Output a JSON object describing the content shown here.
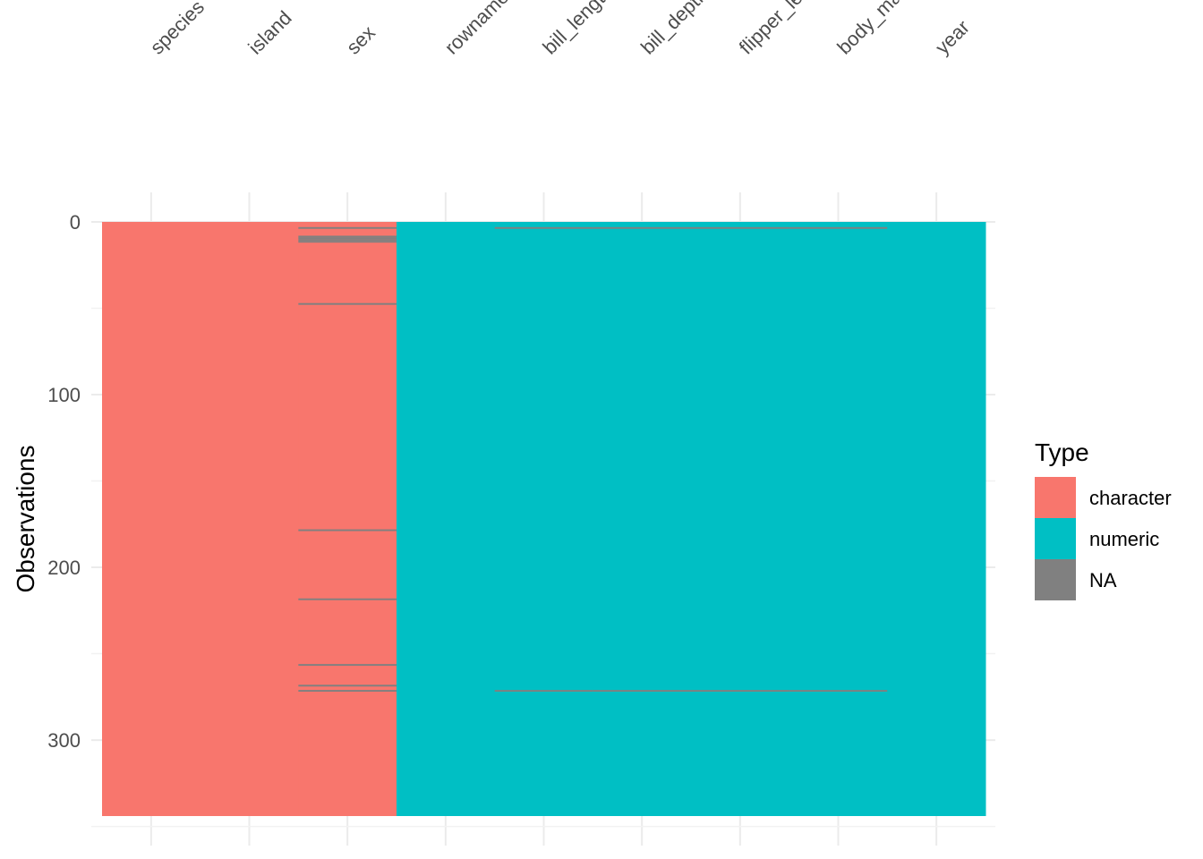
{
  "chart_data": {
    "type": "visdat",
    "y_label": "Observations",
    "legend_title": "Type",
    "columns": [
      "species",
      "island",
      "sex",
      "rownames",
      "bill_length_mm",
      "bill_depth_mm",
      "flipper_length_mm",
      "body_mass_g",
      "year"
    ],
    "column_types": [
      "character",
      "character",
      "character",
      "numeric",
      "numeric",
      "numeric",
      "numeric",
      "numeric",
      "numeric"
    ],
    "types": [
      {
        "name": "character",
        "color": "#F8766D"
      },
      {
        "name": "numeric",
        "color": "#00BFC4"
      },
      {
        "name": "NA",
        "color": "#808080"
      }
    ],
    "n_rows": 344,
    "missing": [
      [],
      [],
      [
        4,
        9,
        10,
        11,
        12,
        48,
        179,
        219,
        257,
        269,
        272
      ],
      [],
      [
        4,
        272
      ],
      [
        4,
        272
      ],
      [
        4,
        272
      ],
      [
        4,
        272
      ],
      []
    ],
    "ylim": [
      0,
      344
    ],
    "yticks": [
      0,
      100,
      200,
      300
    ],
    "y_reversed": true,
    "grid": true
  }
}
